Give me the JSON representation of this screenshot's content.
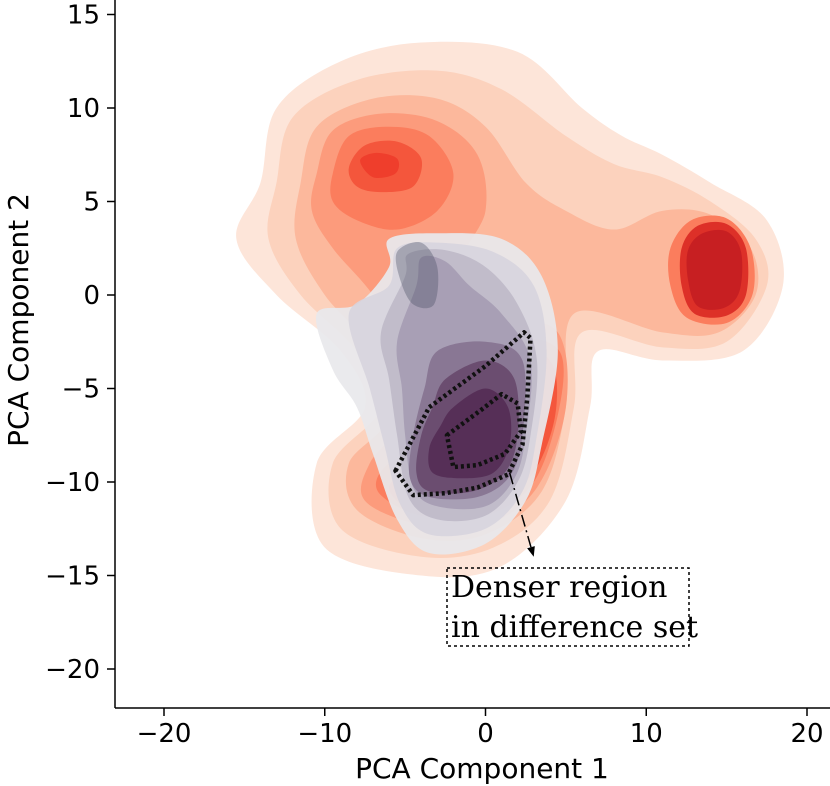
{
  "chart_data": {
    "type": "kde-contour",
    "xlabel": "PCA Component 1",
    "ylabel": "PCA Component 2",
    "xlim": [
      -23,
      21
    ],
    "ylim": [
      -22,
      16
    ],
    "xticks": [
      -20,
      -10,
      0,
      10,
      20
    ],
    "yticks": [
      -20,
      -15,
      -10,
      -5,
      0,
      5,
      10,
      15
    ],
    "xtick_labels": [
      "−20",
      "−10",
      "0",
      "10",
      "20"
    ],
    "ytick_labels": [
      "−20",
      "−15",
      "−10",
      "−5",
      "0",
      "5",
      "10",
      "15"
    ],
    "grid": false,
    "series": [
      {
        "color": "#b2182b",
        "density_peaks": [
          {
            "x": -7,
            "y": 7,
            "weight": 0.55
          },
          {
            "x": 15,
            "y": 1.5,
            "weight": 0.9
          },
          {
            "x": 4,
            "y": -5,
            "weight": 0.6
          },
          {
            "x": -6,
            "y": -11,
            "weight": 0.45
          }
        ]
      },
      {
        "color": "#3b1f3a",
        "density_peaks": [
          {
            "x": -4,
            "y": 1,
            "weight": 0.3
          },
          {
            "x": -1,
            "y": -8,
            "weight": 0.9
          }
        ]
      }
    ],
    "annotations": [
      {
        "text_lines": [
          "Denser region",
          "in difference set"
        ],
        "points_to": {
          "x": 3,
          "y": -14
        },
        "arrow_from": {
          "x": 1.5,
          "y": -9.5
        }
      }
    ]
  }
}
